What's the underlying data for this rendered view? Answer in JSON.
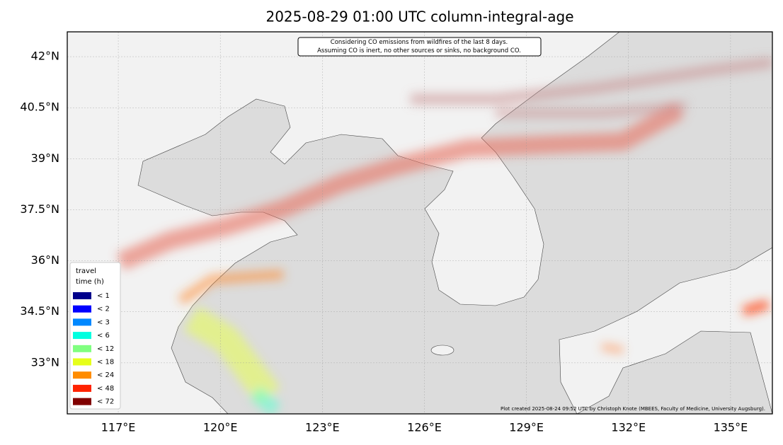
{
  "title": "2025-08-29 01:00 UTC column-integral-age",
  "annotation": [
    "Considering CO emissions from wildfires of the last 8 days.",
    "Assuming CO is inert, no other sources or sinks, no background CO."
  ],
  "credit": "Plot created 2025-08-24 09:52 UTC by Christoph Knote (MBEES, Faculty of Medicine, University Augsburg).",
  "map": {
    "lon_range": [
      115.5,
      136.23
    ],
    "lat_range": [
      31.5,
      42.73
    ],
    "lon_ticks": [
      {
        "value": 117,
        "label": "117°E"
      },
      {
        "value": 120,
        "label": "120°E"
      },
      {
        "value": 123,
        "label": "123°E"
      },
      {
        "value": 126,
        "label": "126°E"
      },
      {
        "value": 129,
        "label": "129°E"
      },
      {
        "value": 132,
        "label": "132°E"
      },
      {
        "value": 135,
        "label": "135°E"
      }
    ],
    "lat_ticks": [
      {
        "value": 42,
        "label": "42°N"
      },
      {
        "value": 40.5,
        "label": "40.5°N"
      },
      {
        "value": 39,
        "label": "39°N"
      },
      {
        "value": 37.5,
        "label": "37.5°N"
      },
      {
        "value": 36,
        "label": "36°N"
      },
      {
        "value": 34.5,
        "label": "34.5°N"
      },
      {
        "value": 33,
        "label": "33°N"
      }
    ]
  },
  "legend": {
    "title": [
      "travel",
      "time (h)"
    ],
    "items": [
      {
        "label": "< 1",
        "color": "#00008b"
      },
      {
        "label": "< 2",
        "color": "#0000ff"
      },
      {
        "label": "< 3",
        "color": "#0088ff"
      },
      {
        "label": "< 6",
        "color": "#00ffe0"
      },
      {
        "label": "< 12",
        "color": "#80ff80"
      },
      {
        "label": "< 18",
        "color": "#e6ff1a"
      },
      {
        "label": "< 24",
        "color": "#ff8c00"
      },
      {
        "label": "< 48",
        "color": "#ff2200"
      },
      {
        "label": "< 72",
        "color": "#800000"
      }
    ]
  }
}
